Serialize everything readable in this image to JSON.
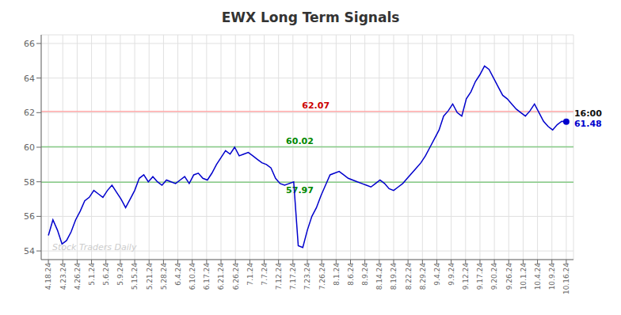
{
  "chart_data": {
    "type": "line",
    "title": "EWX Long Term Signals",
    "title_color": "#333333",
    "color": "#0000cc",
    "marker": "circle",
    "grid": true,
    "x": [
      0,
      1,
      2,
      3,
      4,
      5,
      6,
      7,
      8,
      9,
      10,
      11,
      12,
      13,
      14,
      15,
      16,
      17,
      18,
      19,
      20,
      21,
      22,
      23,
      24,
      25,
      26,
      27,
      28,
      29,
      30,
      31,
      32,
      33,
      34,
      35,
      36,
      37,
      38,
      39,
      40,
      41,
      42,
      43,
      44,
      45,
      46,
      47,
      48,
      49,
      50,
      51,
      52,
      53,
      54,
      55,
      56,
      57,
      58,
      59,
      60,
      61,
      62,
      63,
      64,
      65,
      66,
      67,
      68,
      69,
      70,
      71,
      72,
      73,
      74,
      75,
      76,
      77,
      78,
      79,
      80,
      81,
      82,
      83,
      84,
      85,
      86,
      87,
      88,
      89,
      90,
      91,
      92,
      93,
      94,
      95,
      96,
      97,
      98,
      99,
      100,
      101,
      102,
      103,
      104,
      105,
      106,
      107,
      108,
      109,
      110,
      111,
      112,
      113,
      114
    ],
    "values": [
      54.9,
      55.8,
      55.2,
      54.4,
      54.6,
      55.1,
      55.8,
      56.3,
      56.9,
      57.1,
      57.5,
      57.3,
      57.1,
      57.5,
      57.8,
      57.4,
      57.0,
      56.5,
      57.0,
      57.5,
      58.2,
      58.4,
      58.0,
      58.3,
      58.0,
      57.8,
      58.1,
      58.0,
      57.9,
      58.1,
      58.3,
      57.9,
      58.4,
      58.5,
      58.2,
      58.1,
      58.5,
      59.0,
      59.4,
      59.8,
      59.6,
      60.0,
      59.5,
      59.6,
      59.7,
      59.5,
      59.3,
      59.1,
      59.0,
      58.8,
      58.2,
      57.9,
      57.8,
      57.9,
      58.0,
      54.3,
      54.2,
      55.2,
      56.0,
      56.5,
      57.2,
      57.8,
      58.4,
      58.5,
      58.6,
      58.4,
      58.2,
      58.1,
      58.0,
      57.9,
      57.8,
      57.7,
      57.9,
      58.1,
      57.9,
      57.6,
      57.5,
      57.7,
      57.9,
      58.2,
      58.5,
      58.8,
      59.1,
      59.5,
      60.0,
      60.5,
      61.0,
      61.8,
      62.1,
      62.5,
      62.0,
      61.8,
      62.8,
      63.2,
      63.8,
      64.2,
      64.7,
      64.5,
      64.0,
      63.5,
      63.0,
      62.8,
      62.5,
      62.2,
      62.0,
      61.8,
      62.1,
      62.5,
      62.0,
      61.5,
      61.2,
      61.0,
      61.3,
      61.5,
      61.48
    ],
    "xlim": [
      -1.583333,
      115.583333
    ],
    "xticks": [
      {
        "value": 0,
        "label": "4.18.24"
      },
      {
        "value": 3.166667,
        "label": "4.23.24"
      },
      {
        "value": 6.333333,
        "label": "4.26.24"
      },
      {
        "value": 9.5,
        "label": "5.1.24"
      },
      {
        "value": 12.666667,
        "label": "5.6.24"
      },
      {
        "value": 15.833333,
        "label": "5.9.24"
      },
      {
        "value": 19,
        "label": "5.15.24"
      },
      {
        "value": 22.166667,
        "label": "5.21.24"
      },
      {
        "value": 25.333333,
        "label": "5.28.24"
      },
      {
        "value": 28.5,
        "label": "6.4.24"
      },
      {
        "value": 31.666667,
        "label": "6.10.24"
      },
      {
        "value": 34.833333,
        "label": "6.17.24"
      },
      {
        "value": 38,
        "label": "6.21.24"
      },
      {
        "value": 41.166667,
        "label": "6.26.24"
      },
      {
        "value": 44.333333,
        "label": "7.1.24"
      },
      {
        "value": 47.5,
        "label": "7.7.24"
      },
      {
        "value": 50.666667,
        "label": "7.12.24"
      },
      {
        "value": 53.833333,
        "label": "7.17.24"
      },
      {
        "value": 57,
        "label": "7.23.24"
      },
      {
        "value": 60.166667,
        "label": "7.26.24"
      },
      {
        "value": 63.333333,
        "label": "8.1.24"
      },
      {
        "value": 66.5,
        "label": "8.6.24"
      },
      {
        "value": 69.666667,
        "label": "8.9.24"
      },
      {
        "value": 72.833333,
        "label": "8.14.24"
      },
      {
        "value": 76,
        "label": "8.19.24"
      },
      {
        "value": 79.166667,
        "label": "8.22.24"
      },
      {
        "value": 82.333333,
        "label": "8.29.24"
      },
      {
        "value": 85.5,
        "label": "9.4.24"
      },
      {
        "value": 88.666667,
        "label": "9.9.24"
      },
      {
        "value": 91.833333,
        "label": "9.12.24"
      },
      {
        "value": 95,
        "label": "9.17.24"
      },
      {
        "value": 98.166667,
        "label": "9.20.24"
      },
      {
        "value": 101.333333,
        "label": "9.26.24"
      },
      {
        "value": 104.5,
        "label": "10.1.24"
      },
      {
        "value": 107.666667,
        "label": "10.4.24"
      },
      {
        "value": 110.833333,
        "label": "10.9.24"
      },
      {
        "value": 114,
        "label": "10.16.24"
      }
    ],
    "ylim": [
      53.5,
      66.5
    ],
    "yticks": [
      54,
      56,
      58,
      60,
      62,
      64,
      66
    ],
    "hlines": [
      {
        "value": 62.07,
        "label": "62.07",
        "color": "#ffaaaa",
        "label_color": "#cc0000"
      },
      {
        "value": 60.02,
        "label": "60.02",
        "color": "#88cc88",
        "label_color": "#008800"
      },
      {
        "value": 57.97,
        "label": "57.97",
        "color": "#88cc88",
        "label_color": "#008800"
      }
    ],
    "watermark": {
      "text": "Stock Traders Daily",
      "color": "#cccccc"
    },
    "last_labels": [
      {
        "text": "16:00",
        "color": "#111111"
      },
      {
        "text": "61.48",
        "color": "#0000cc"
      }
    ]
  }
}
